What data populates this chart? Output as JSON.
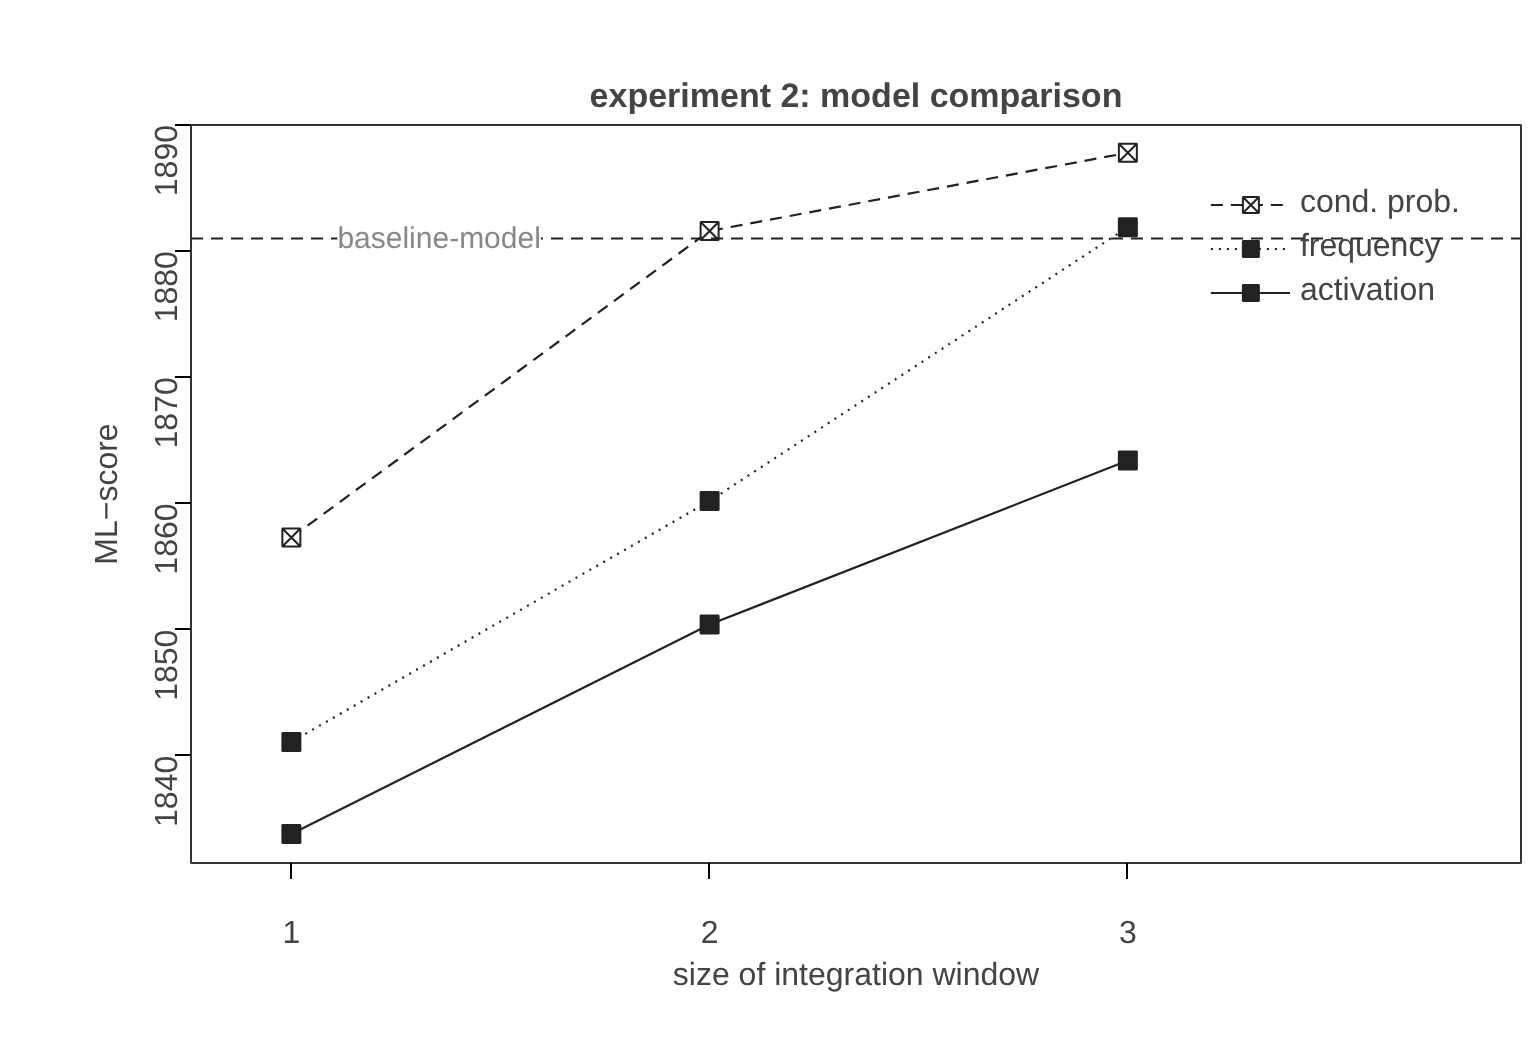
{
  "chart_data": {
    "type": "line",
    "title": "experiment 2: model comparison",
    "xlabel": "size of integration window",
    "ylabel": "ML−score",
    "x": [
      1,
      2,
      3
    ],
    "series": [
      {
        "name": "cond. prob.",
        "color": "#222222",
        "values": [
          1857.3,
          1881.6,
          1887.8
        ],
        "marker": "cross",
        "line_style": "dashed"
      },
      {
        "name": "frequency",
        "color": "#222222",
        "values": [
          1841.1,
          1860.2,
          1881.9
        ],
        "marker": "square",
        "line_style": "dotted"
      },
      {
        "name": "activation",
        "color": "#222222",
        "values": [
          1833.8,
          1850.4,
          1863.4
        ],
        "marker": "square",
        "line_style": "solid"
      }
    ],
    "xlim": [
      0.76,
      3.94
    ],
    "xticks": [
      1,
      2,
      3
    ],
    "ylim": [
      1831.5,
      1890
    ],
    "yticks": [
      1840,
      1850,
      1860,
      1870,
      1880,
      1890
    ],
    "ref_lines": [
      {
        "axis": "y",
        "value": 1881,
        "label": "baseline-model",
        "color": "#222222",
        "line_style": "dashed"
      }
    ],
    "grid": false,
    "legend": "top right"
  }
}
